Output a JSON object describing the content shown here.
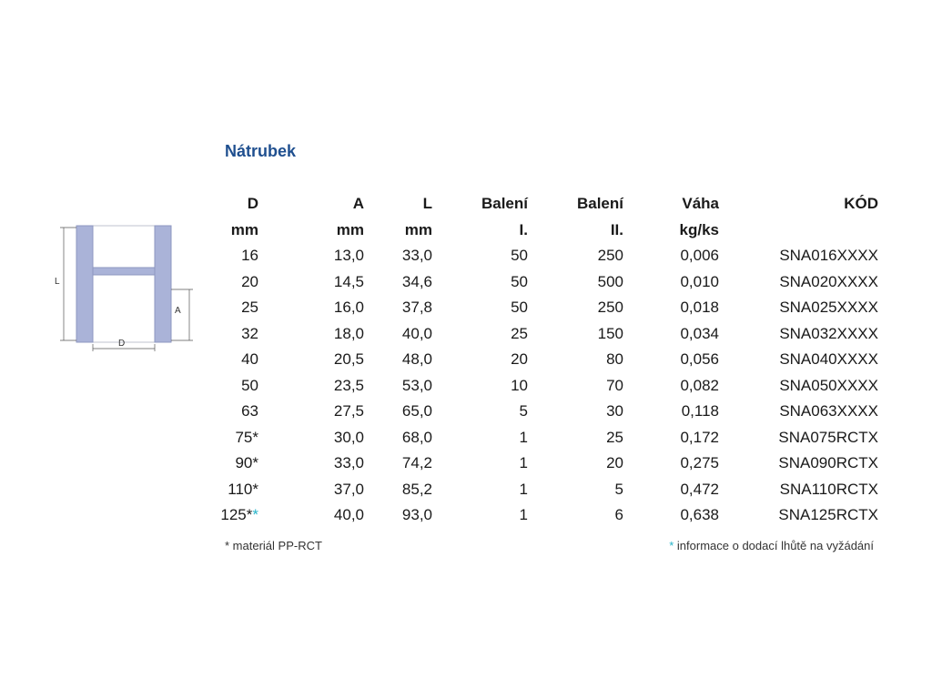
{
  "title": "Nátrubek",
  "diagram": {
    "label_l": "L",
    "label_a": "A",
    "label_d": "D"
  },
  "headers": {
    "row1": [
      "D",
      "A",
      "L",
      "Balení",
      "Balení",
      "Váha",
      "KÓD"
    ],
    "row2": [
      "mm",
      "mm",
      "mm",
      "I.",
      "II.",
      "kg/ks",
      ""
    ]
  },
  "rows": [
    {
      "d": "16",
      "d_mark": "",
      "d_mark2": "",
      "a": "13,0",
      "l": "33,0",
      "b1": "50",
      "b2": "250",
      "w": "0,006",
      "code": "SNA016XXXX"
    },
    {
      "d": "20",
      "d_mark": "",
      "d_mark2": "",
      "a": "14,5",
      "l": "34,6",
      "b1": "50",
      "b2": "500",
      "w": "0,010",
      "code": "SNA020XXXX"
    },
    {
      "d": "25",
      "d_mark": "",
      "d_mark2": "",
      "a": "16,0",
      "l": "37,8",
      "b1": "50",
      "b2": "250",
      "w": "0,018",
      "code": "SNA025XXXX"
    },
    {
      "d": "32",
      "d_mark": "",
      "d_mark2": "",
      "a": "18,0",
      "l": "40,0",
      "b1": "25",
      "b2": "150",
      "w": "0,034",
      "code": "SNA032XXXX"
    },
    {
      "d": "40",
      "d_mark": "",
      "d_mark2": "",
      "a": "20,5",
      "l": "48,0",
      "b1": "20",
      "b2": "80",
      "w": "0,056",
      "code": "SNA040XXXX"
    },
    {
      "d": "50",
      "d_mark": "",
      "d_mark2": "",
      "a": "23,5",
      "l": "53,0",
      "b1": "10",
      "b2": "70",
      "w": "0,082",
      "code": "SNA050XXXX"
    },
    {
      "d": "63",
      "d_mark": "",
      "d_mark2": "",
      "a": "27,5",
      "l": "65,0",
      "b1": "5",
      "b2": "30",
      "w": "0,118",
      "code": "SNA063XXXX"
    },
    {
      "d": "75",
      "d_mark": "*",
      "d_mark2": "",
      "a": "30,0",
      "l": "68,0",
      "b1": "1",
      "b2": "25",
      "w": "0,172",
      "code": "SNA075RCTX"
    },
    {
      "d": "90",
      "d_mark": "*",
      "d_mark2": "",
      "a": "33,0",
      "l": "74,2",
      "b1": "1",
      "b2": "20",
      "w": "0,275",
      "code": "SNA090RCTX"
    },
    {
      "d": "110",
      "d_mark": "*",
      "d_mark2": "",
      "a": "37,0",
      "l": "85,2",
      "b1": "1",
      "b2": "5",
      "w": "0,472",
      "code": "SNA110RCTX"
    },
    {
      "d": "125",
      "d_mark": "*",
      "d_mark2": "*",
      "a": "40,0",
      "l": "93,0",
      "b1": "1",
      "b2": "6",
      "w": "0,638",
      "code": "SNA125RCTX"
    }
  ],
  "footnotes": {
    "left": "* materiál PP-RCT",
    "right_mark": "*",
    "right_text": " informace o dodací lhůtě na vyžádání"
  },
  "colors": {
    "title": "#1f4f8f",
    "fitting_wall": "#aab3d8",
    "footnote_mark": "#27b4c9"
  }
}
